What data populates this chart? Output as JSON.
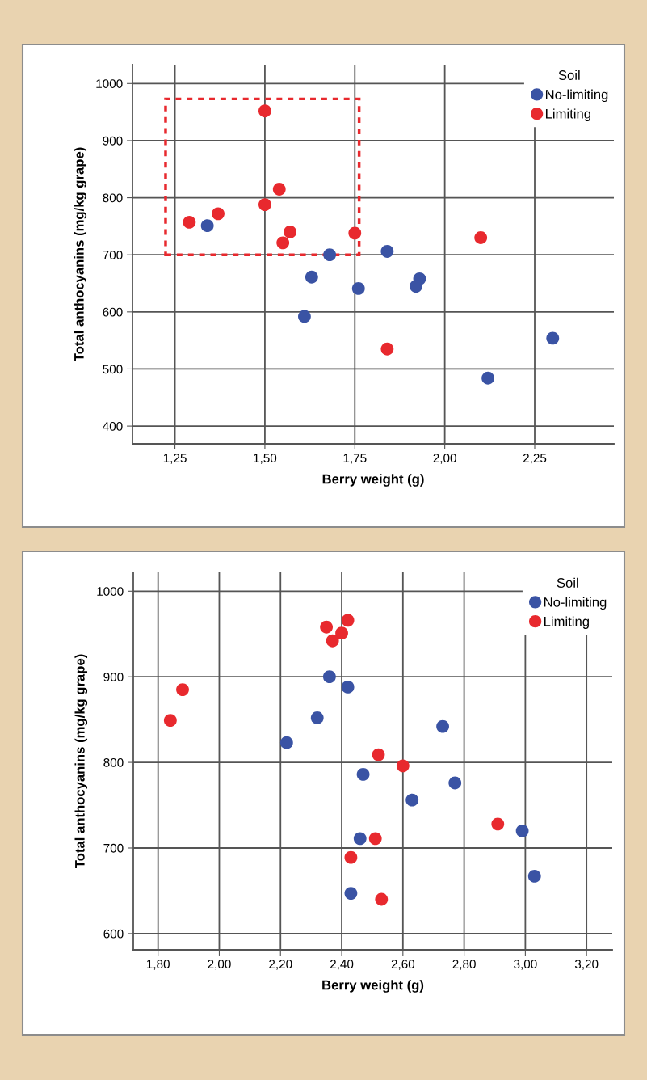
{
  "chart_data": [
    {
      "type": "scatter",
      "xlabel": "Berry weight (g)",
      "ylabel": "Total anthocyanins (mg/kg grape)",
      "legend_title": "Soil",
      "legend": "top right",
      "grid": true,
      "marker": "circle",
      "xlim": [
        1.132,
        2.47
      ],
      "ylim": [
        369,
        1033
      ],
      "xticks": [
        {
          "value": 1.25,
          "label": "1,25"
        },
        {
          "value": 1.5,
          "label": "1,50"
        },
        {
          "value": 1.75,
          "label": "1,75"
        },
        {
          "value": 2.0,
          "label": "2,00"
        },
        {
          "value": 2.25,
          "label": "2,25"
        }
      ],
      "yticks": [
        400,
        500,
        600,
        700,
        800,
        900,
        1000
      ],
      "series": [
        {
          "name": "No-limiting",
          "color": "#3a53a4",
          "x": [
            1.34,
            1.68,
            1.84,
            1.63,
            1.76,
            1.93,
            1.92,
            1.61,
            2.3,
            2.12
          ],
          "values": [
            751,
            700,
            706,
            661,
            641,
            658,
            645,
            592,
            554,
            484
          ]
        },
        {
          "name": "Limiting",
          "color": "#e8292e",
          "x": [
            1.5,
            1.54,
            1.5,
            1.37,
            1.29,
            1.57,
            1.55,
            1.75,
            2.1,
            1.84
          ],
          "values": [
            952,
            815,
            788,
            772,
            757,
            740,
            721,
            738,
            730,
            535
          ]
        }
      ]
    },
    {
      "type": "scatter",
      "xlabel": "Berry weight (g)",
      "ylabel": "Total anthocyanins (mg/kg grape)",
      "legend_title": "Soil",
      "legend": "top right",
      "grid": true,
      "marker": "circle",
      "xlim": [
        1.719,
        3.284
      ],
      "ylim": [
        581,
        1022
      ],
      "xticks": [
        {
          "value": 1.8,
          "label": "1,80"
        },
        {
          "value": 2.0,
          "label": "2,00"
        },
        {
          "value": 2.2,
          "label": "2,20"
        },
        {
          "value": 2.4,
          "label": "2,40"
        },
        {
          "value": 2.6,
          "label": "2,60"
        },
        {
          "value": 2.8,
          "label": "2,80"
        },
        {
          "value": 3.0,
          "label": "3,00"
        },
        {
          "value": 3.2,
          "label": "3,20"
        }
      ],
      "yticks": [
        600,
        700,
        800,
        900,
        1000
      ],
      "series": [
        {
          "name": "No-limiting",
          "color": "#3a53a4",
          "x": [
            2.36,
            2.42,
            2.32,
            2.22,
            2.73,
            2.47,
            2.77,
            2.63,
            2.46,
            2.99,
            3.03,
            2.43
          ],
          "values": [
            900,
            888,
            852,
            823,
            842,
            786,
            776,
            756,
            711,
            720,
            667,
            647
          ]
        },
        {
          "name": "Limiting",
          "color": "#e8292e",
          "x": [
            2.42,
            2.35,
            2.4,
            2.37,
            1.88,
            1.84,
            2.52,
            2.6,
            2.91,
            2.51,
            2.43,
            2.53
          ],
          "values": [
            966,
            958,
            951,
            942,
            885,
            849,
            809,
            796,
            728,
            711,
            689,
            640
          ]
        }
      ]
    }
  ]
}
